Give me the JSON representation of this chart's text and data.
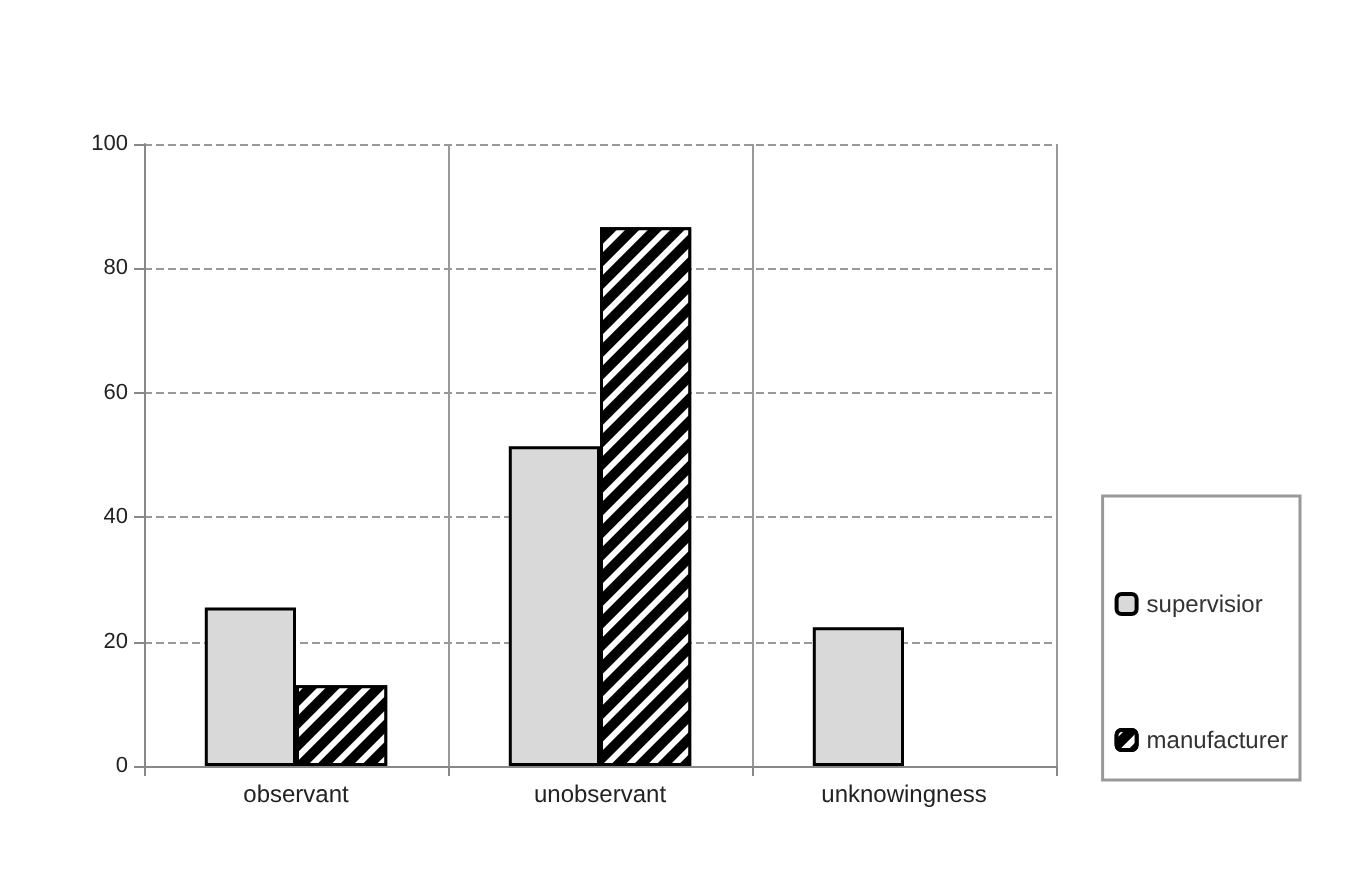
{
  "chart_data": {
    "type": "bar",
    "categories": [
      "observant",
      "unobservant",
      "unknowingness"
    ],
    "series": [
      {
        "name": "supervisior",
        "color": "#d9d9d9",
        "values": [
          25.5,
          51.4,
          22.3
        ]
      },
      {
        "name": "manufacturer",
        "color": "#000000",
        "values": [
          13.0,
          86.6,
          null
        ]
      }
    ],
    "ylim": [
      0,
      100
    ],
    "yticks": [
      0,
      20,
      40,
      60,
      80,
      100
    ],
    "grid": true,
    "legend": "right"
  }
}
